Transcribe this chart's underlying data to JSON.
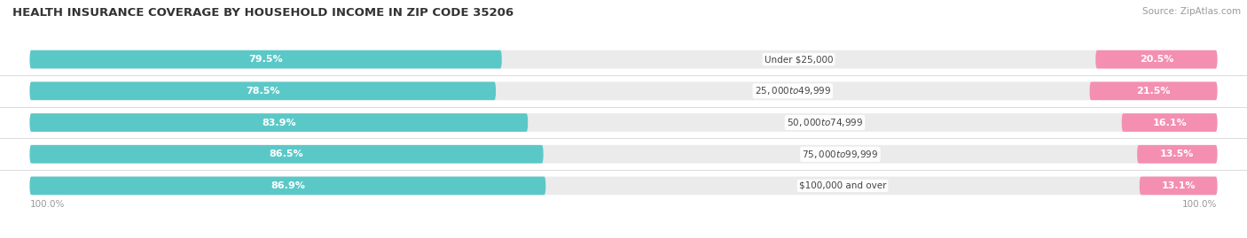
{
  "title": "HEALTH INSURANCE COVERAGE BY HOUSEHOLD INCOME IN ZIP CODE 35206",
  "source": "Source: ZipAtlas.com",
  "categories": [
    "Under $25,000",
    "$25,000 to $49,999",
    "$50,000 to $74,999",
    "$75,000 to $99,999",
    "$100,000 and over"
  ],
  "with_coverage": [
    79.5,
    78.5,
    83.9,
    86.5,
    86.9
  ],
  "without_coverage": [
    20.5,
    21.5,
    16.1,
    13.5,
    13.1
  ],
  "color_with": "#5bc8c8",
  "color_without": "#f48fb1",
  "color_bg_bar": "#ebebeb",
  "title_fontsize": 9.5,
  "source_fontsize": 7.5,
  "label_fontsize": 8,
  "bar_height": 0.58,
  "bg_color": "#ffffff",
  "axis_label_left": "100.0%",
  "axis_label_right": "100.0%",
  "xlim_left": -105,
  "xlim_right": 105
}
